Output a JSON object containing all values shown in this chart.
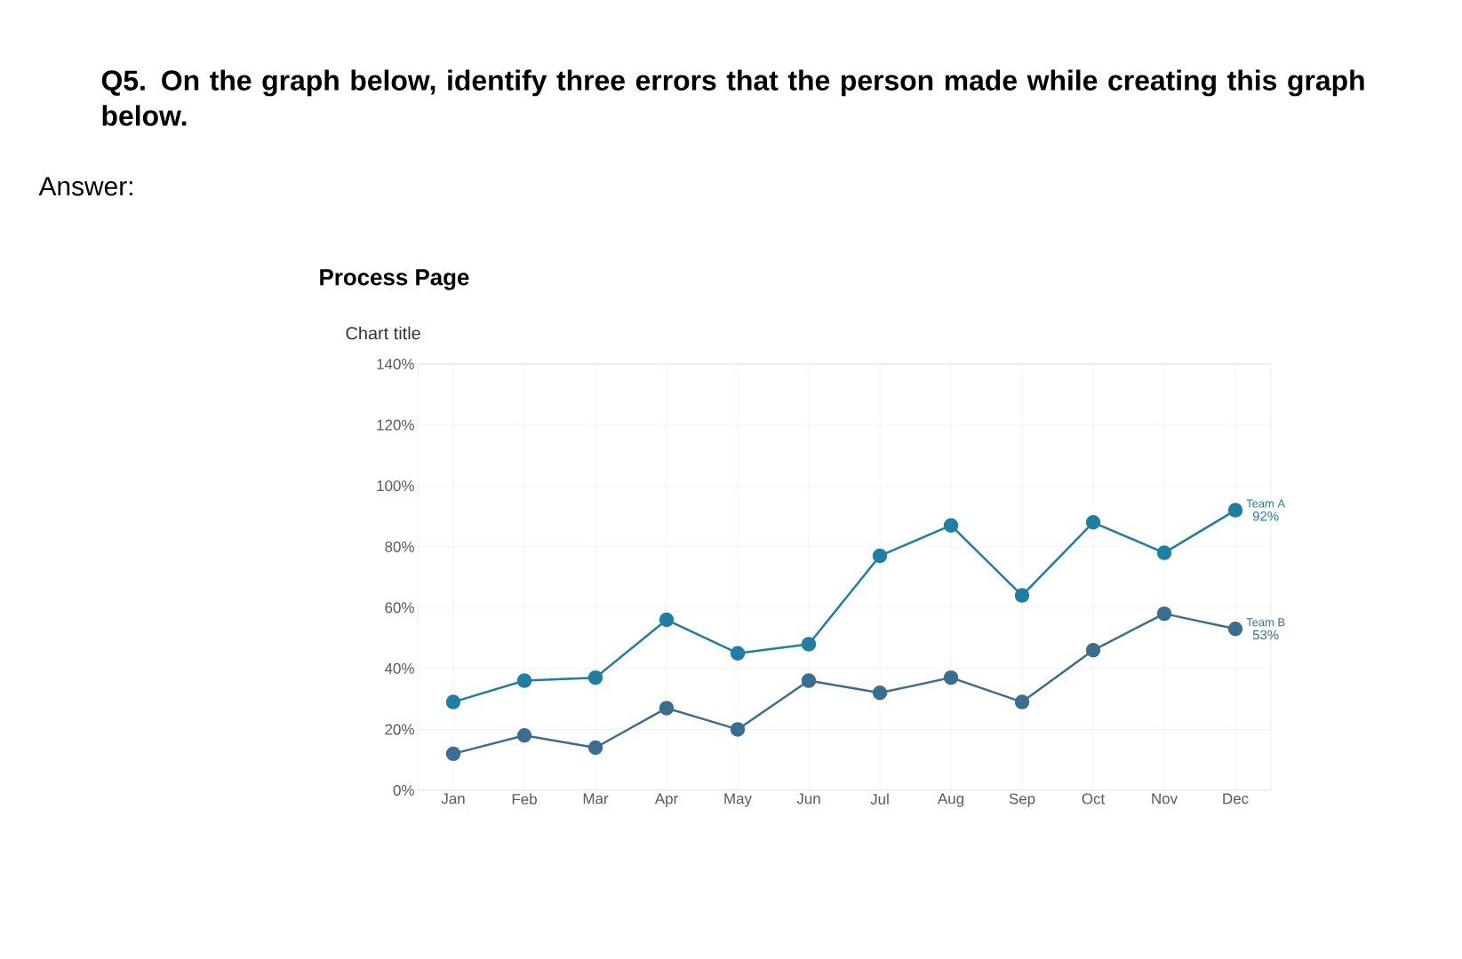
{
  "chart_data": {
    "type": "line",
    "title": "Process Page",
    "subtitle": "Chart title",
    "annotations": [
      "Q5. On the graph below, identify three errors that the person made while creating this graph below.",
      "Answer:"
    ],
    "categories": [
      "Jan",
      "Feb",
      "Mar",
      "Apr",
      "May",
      "Jun",
      "Jul",
      "Aug",
      "Sep",
      "Oct",
      "Nov",
      "Dec"
    ],
    "series": [
      {
        "name": "Team A",
        "color": "#1f7ea1",
        "values": [
          29,
          36,
          37,
          56,
          45,
          48,
          77,
          87,
          64,
          88,
          78,
          92
        ],
        "value_labels": [
          null,
          null,
          null,
          null,
          null,
          null,
          null,
          null,
          null,
          null,
          null,
          "92%"
        ]
      },
      {
        "name": "Team B",
        "color": "#3a6e8e",
        "values": [
          12,
          18,
          14,
          27,
          20,
          36,
          32,
          37,
          29,
          46,
          58,
          53
        ],
        "value_labels": [
          null,
          null,
          null,
          null,
          null,
          null,
          null,
          null,
          null,
          null,
          null,
          "53%"
        ]
      }
    ],
    "ylim": [
      0,
      140
    ],
    "yticks": [
      {
        "value": 0,
        "label": "0%"
      },
      {
        "value": 20,
        "label": "20%"
      },
      {
        "value": 40,
        "label": "40%"
      },
      {
        "value": 60,
        "label": "60%"
      },
      {
        "value": 80,
        "label": "80%"
      },
      {
        "value": 100,
        "label": "100%"
      },
      {
        "value": 120,
        "label": "120%"
      },
      {
        "value": 140,
        "label": "140%"
      }
    ],
    "grid": true,
    "marker": "circle",
    "line_style": "solid"
  }
}
